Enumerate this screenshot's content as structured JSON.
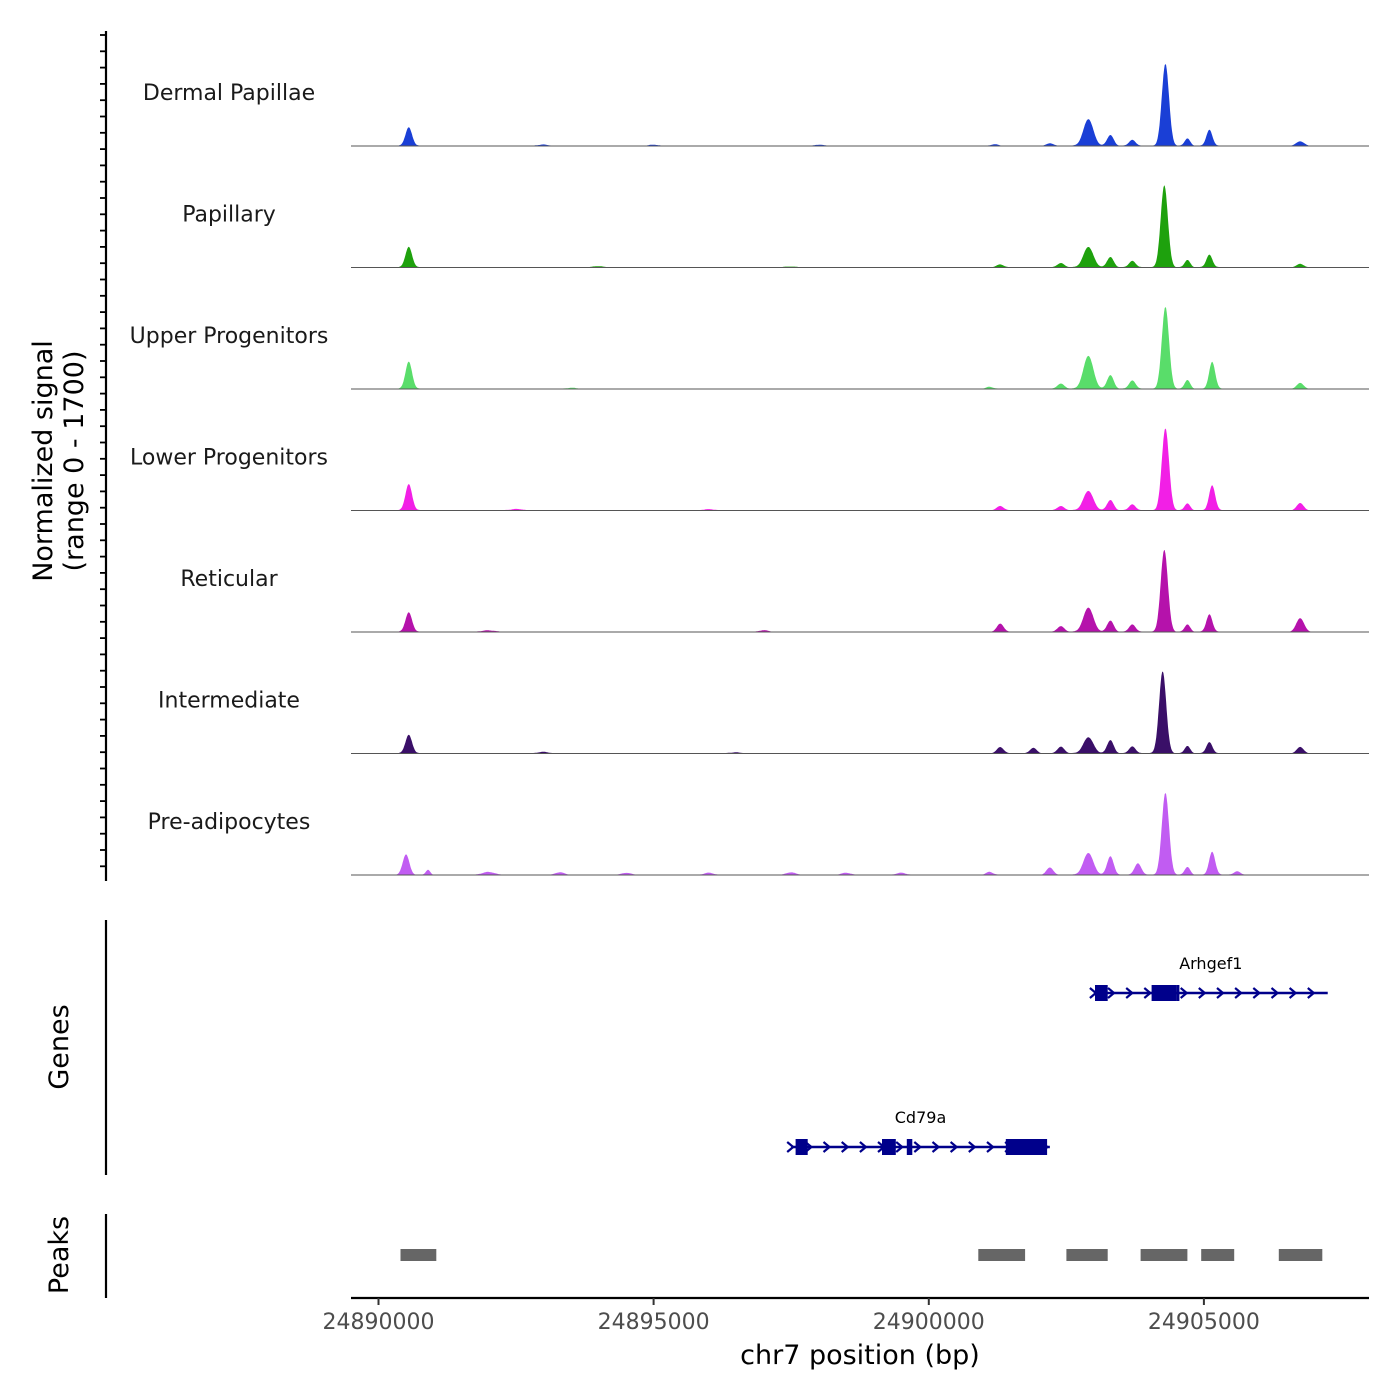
{
  "chart_data": {
    "type": "area",
    "chromosome": "chr7",
    "xlabel": "chr7 position (bp)",
    "ylabel_line1": "Normalized signal",
    "ylabel_line2": "(range 0 - 1700)",
    "ylim": [
      0,
      1700
    ],
    "xlim": [
      24889500,
      24908000
    ],
    "x_ticks": [
      24890000,
      24895000,
      24900000,
      24905000
    ],
    "x_tick_labels": [
      "24890000",
      "24895000",
      "24900000",
      "24905000"
    ],
    "genes_panel_label": "Genes",
    "peaks_panel_label": "Peaks",
    "tracks": [
      {
        "name": "Dermal Papillae",
        "color": "#1a3fd6",
        "peaks": [
          [
            24890550,
            380,
            60
          ],
          [
            24893000,
            25,
            80
          ],
          [
            24895000,
            20,
            80
          ],
          [
            24898000,
            20,
            80
          ],
          [
            24901200,
            30,
            60
          ],
          [
            24902200,
            50,
            60
          ],
          [
            24902900,
            550,
            90
          ],
          [
            24903300,
            220,
            60
          ],
          [
            24903700,
            120,
            60
          ],
          [
            24904300,
            1700,
            65
          ],
          [
            24904700,
            150,
            50
          ],
          [
            24905100,
            330,
            55
          ],
          [
            24906750,
            90,
            70
          ]
        ]
      },
      {
        "name": "Papillary",
        "color": "#1ea10d",
        "peaks": [
          [
            24890550,
            420,
            60
          ],
          [
            24894000,
            20,
            100
          ],
          [
            24897500,
            15,
            100
          ],
          [
            24901300,
            60,
            60
          ],
          [
            24902400,
            90,
            60
          ],
          [
            24902900,
            420,
            90
          ],
          [
            24903300,
            210,
            60
          ],
          [
            24903700,
            130,
            60
          ],
          [
            24904280,
            1700,
            65
          ],
          [
            24904700,
            150,
            50
          ],
          [
            24905100,
            260,
            55
          ],
          [
            24906750,
            70,
            60
          ]
        ]
      },
      {
        "name": "Upper Progenitors",
        "color": "#59dd6a",
        "peaks": [
          [
            24890550,
            560,
            60
          ],
          [
            24893500,
            20,
            80
          ],
          [
            24901100,
            40,
            60
          ],
          [
            24902400,
            110,
            60
          ],
          [
            24902900,
            680,
            90
          ],
          [
            24903300,
            280,
            60
          ],
          [
            24903700,
            170,
            60
          ],
          [
            24904300,
            1700,
            65
          ],
          [
            24904700,
            180,
            50
          ],
          [
            24905150,
            560,
            55
          ],
          [
            24906750,
            120,
            60
          ]
        ]
      },
      {
        "name": "Lower Progenitors",
        "color": "#f21fe6",
        "peaks": [
          [
            24890550,
            540,
            60
          ],
          [
            24892500,
            25,
            100
          ],
          [
            24896000,
            20,
            100
          ],
          [
            24901300,
            90,
            60
          ],
          [
            24902400,
            90,
            60
          ],
          [
            24902900,
            400,
            90
          ],
          [
            24903300,
            210,
            60
          ],
          [
            24903700,
            120,
            60
          ],
          [
            24904300,
            1700,
            65
          ],
          [
            24904700,
            140,
            50
          ],
          [
            24905150,
            520,
            55
          ],
          [
            24906750,
            150,
            60
          ]
        ]
      },
      {
        "name": "Reticular",
        "color": "#b512ab",
        "peaks": [
          [
            24890550,
            400,
            60
          ],
          [
            24892000,
            30,
            100
          ],
          [
            24897000,
            30,
            80
          ],
          [
            24901300,
            170,
            60
          ],
          [
            24902400,
            120,
            60
          ],
          [
            24902900,
            500,
            90
          ],
          [
            24903300,
            230,
            60
          ],
          [
            24903700,
            150,
            60
          ],
          [
            24904280,
            1700,
            65
          ],
          [
            24904700,
            150,
            50
          ],
          [
            24905100,
            360,
            55
          ],
          [
            24906750,
            280,
            70
          ]
        ]
      },
      {
        "name": "Intermediate",
        "color": "#3a0f68",
        "peaks": [
          [
            24890550,
            380,
            60
          ],
          [
            24893000,
            30,
            80
          ],
          [
            24896500,
            20,
            80
          ],
          [
            24901300,
            130,
            60
          ],
          [
            24901900,
            110,
            60
          ],
          [
            24902400,
            140,
            60
          ],
          [
            24902900,
            330,
            90
          ],
          [
            24903300,
            270,
            60
          ],
          [
            24903700,
            140,
            60
          ],
          [
            24904250,
            1700,
            65
          ],
          [
            24904700,
            150,
            50
          ],
          [
            24905100,
            230,
            55
          ],
          [
            24906750,
            130,
            60
          ]
        ]
      },
      {
        "name": "Pre-adipocytes",
        "color": "#c15cf2",
        "peaks": [
          [
            24890500,
            420,
            60
          ],
          [
            24890900,
            100,
            40
          ],
          [
            24892000,
            60,
            100
          ],
          [
            24893300,
            50,
            80
          ],
          [
            24894500,
            40,
            80
          ],
          [
            24896000,
            40,
            80
          ],
          [
            24897500,
            50,
            80
          ],
          [
            24898500,
            40,
            80
          ],
          [
            24899500,
            40,
            80
          ],
          [
            24901100,
            60,
            60
          ],
          [
            24902200,
            150,
            60
          ],
          [
            24902900,
            450,
            90
          ],
          [
            24903300,
            380,
            60
          ],
          [
            24903800,
            240,
            60
          ],
          [
            24904300,
            1700,
            65
          ],
          [
            24904700,
            160,
            50
          ],
          [
            24905150,
            480,
            55
          ],
          [
            24905600,
            70,
            60
          ]
        ]
      }
    ],
    "genes": [
      {
        "name": "Arhgef1",
        "start": 24903000,
        "end": 24907250,
        "strand": "+",
        "exons": [
          [
            24903020,
            24903250
          ],
          [
            24904050,
            24904500
          ],
          [
            24904500,
            24904550
          ]
        ]
      },
      {
        "name": "Cd79a",
        "start": 24897500,
        "end": 24902200,
        "strand": "+",
        "exons": [
          [
            24897580,
            24897800
          ],
          [
            24899150,
            24899400
          ],
          [
            24899600,
            24899700
          ],
          [
            24901400,
            24902150
          ]
        ]
      }
    ],
    "peak_regions": [
      [
        24890400,
        24891050
      ],
      [
        24900900,
        24901750
      ],
      [
        24902500,
        24903250
      ],
      [
        24903850,
        24904700
      ],
      [
        24904950,
        24905550
      ],
      [
        24906360,
        24907150
      ]
    ]
  }
}
